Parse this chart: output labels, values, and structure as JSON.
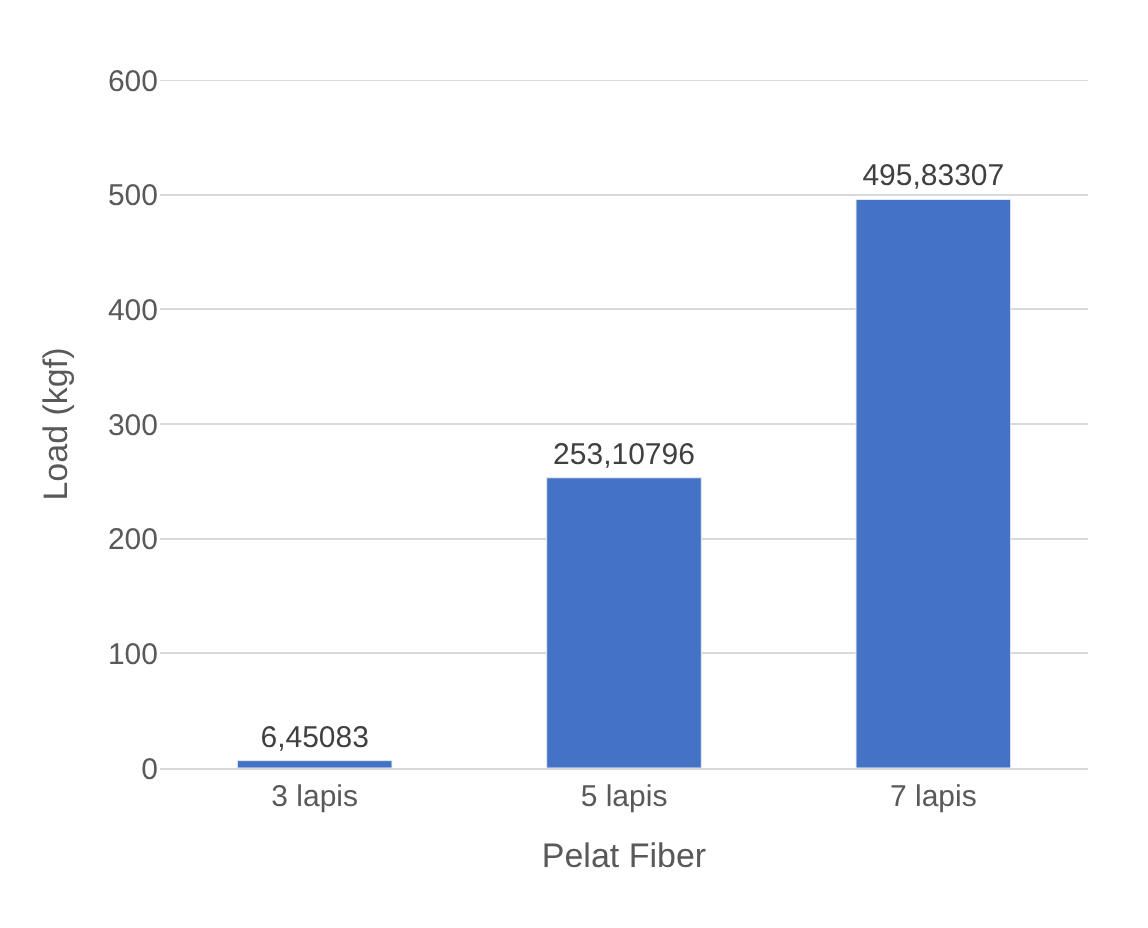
{
  "chart_data": {
    "type": "bar",
    "xlabel": "Pelat Fiber",
    "ylabel": "Load (kgf)",
    "categories": [
      "3 lapis",
      "5 lapis",
      "7 lapis"
    ],
    "values": [
      6.45083,
      253.10796,
      495.83307
    ],
    "value_labels": [
      "6,45083",
      "253,10796",
      "495,83307"
    ],
    "color": "#4472c4",
    "ylim": [
      0,
      600
    ],
    "yticks": [
      0,
      100,
      200,
      300,
      400,
      500,
      600
    ],
    "grid": "y"
  }
}
